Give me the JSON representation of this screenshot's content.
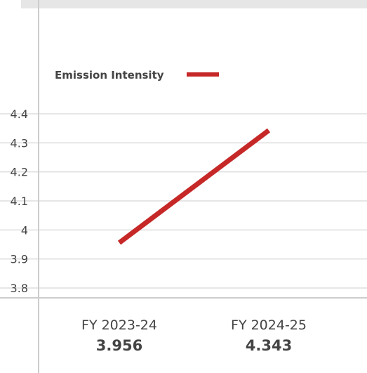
{
  "chart_data": {
    "type": "line",
    "categories": [
      "FY 2023-24",
      "FY 2024-25"
    ],
    "series": [
      {
        "name": "Emission Intensity",
        "values": [
          3.956,
          4.343
        ],
        "color": "#c62828"
      }
    ],
    "data_labels": [
      "3.956",
      "4.343"
    ],
    "yticks": [
      "3.8",
      "3.9",
      "4",
      "4.1",
      "4.2",
      "4.3",
      "4.4"
    ],
    "ylim": [
      3.8,
      4.4
    ],
    "grid": true,
    "legend_position": "top-left"
  }
}
